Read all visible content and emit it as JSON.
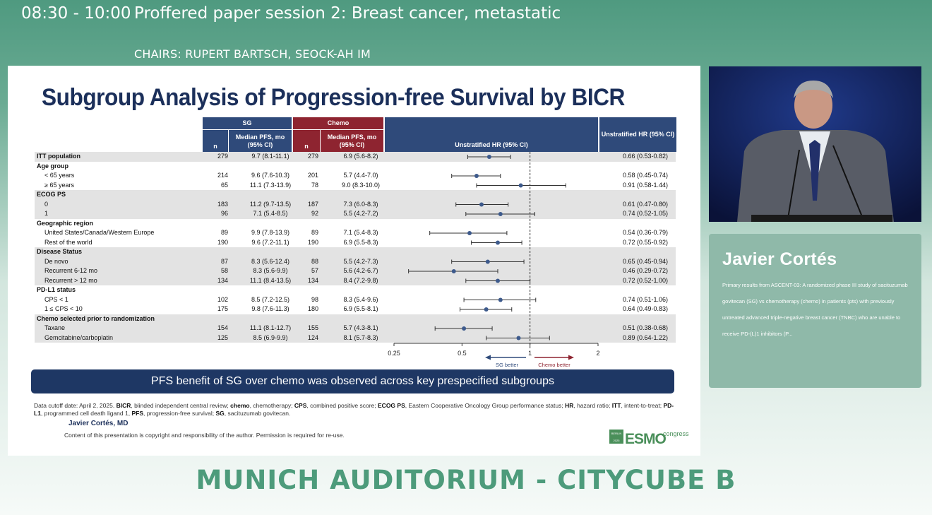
{
  "session": {
    "time": "08:30 - 10:00",
    "title": "Proffered paper session 2: Breast cancer, metastatic",
    "chairs": "CHAIRS: RUPERT BARTSCH, SEOCK-AH IM"
  },
  "slide": {
    "title": "Subgroup Analysis of Progression-free Survival by BICR",
    "headers": {
      "sg": "SG",
      "chemo": "Chemo",
      "n": "n",
      "median_pfs": "Median PFS, mo (95% CI)",
      "hr_plot": "Unstratified HR (95% CI)",
      "hr_col": "Unstratified HR (95% CI)"
    },
    "rows": [
      {
        "label": "ITT population",
        "type": "header",
        "sg_n": "279",
        "sg_pfs": "9.7 (8.1-11.1)",
        "chemo_n": "279",
        "chemo_pfs": "6.9 (5.6-8.2)",
        "hr_text": "0.66 (0.53-0.82)",
        "hr": 0.66,
        "lo": 0.53,
        "hi": 0.82
      },
      {
        "label": "Age group",
        "type": "group"
      },
      {
        "label": "< 65 years",
        "type": "sub",
        "sg_n": "214",
        "sg_pfs": "9.6 (7.6-10.3)",
        "chemo_n": "201",
        "chemo_pfs": "5.7 (4.4-7.0)",
        "hr_text": "0.58 (0.45-0.74)",
        "hr": 0.58,
        "lo": 0.45,
        "hi": 0.74
      },
      {
        "label": "≥ 65 years",
        "type": "sub",
        "sg_n": "65",
        "sg_pfs": "11.1 (7.3-13.9)",
        "chemo_n": "78",
        "chemo_pfs": "9.0 (8.3-10.0)",
        "hr_text": "0.91 (0.58-1.44)",
        "hr": 0.91,
        "lo": 0.58,
        "hi": 1.44
      },
      {
        "label": "ECOG PS",
        "type": "group"
      },
      {
        "label": "0",
        "type": "sub",
        "sg_n": "183",
        "sg_pfs": "11.2 (9.7-13.5)",
        "chemo_n": "187",
        "chemo_pfs": "7.3 (6.0-8.3)",
        "hr_text": "0.61 (0.47-0.80)",
        "hr": 0.61,
        "lo": 0.47,
        "hi": 0.8
      },
      {
        "label": "1",
        "type": "sub",
        "sg_n": "96",
        "sg_pfs": "7.1 (5.4-8.5)",
        "chemo_n": "92",
        "chemo_pfs": "5.5 (4.2-7.2)",
        "hr_text": "0.74 (0.52-1.05)",
        "hr": 0.74,
        "lo": 0.52,
        "hi": 1.05
      },
      {
        "label": "Geographic region",
        "type": "group"
      },
      {
        "label": "United States/Canada/Western Europe",
        "type": "sub",
        "sg_n": "89",
        "sg_pfs": "9.9 (7.8-13.9)",
        "chemo_n": "89",
        "chemo_pfs": "7.1 (5.4-8.3)",
        "hr_text": "0.54 (0.36-0.79)",
        "hr": 0.54,
        "lo": 0.36,
        "hi": 0.79
      },
      {
        "label": "Rest of the world",
        "type": "sub",
        "sg_n": "190",
        "sg_pfs": "9.6 (7.2-11.1)",
        "chemo_n": "190",
        "chemo_pfs": "6.9 (5.5-8.3)",
        "hr_text": "0.72 (0.55-0.92)",
        "hr": 0.72,
        "lo": 0.55,
        "hi": 0.92
      },
      {
        "label": "Disease Status",
        "type": "group"
      },
      {
        "label": "De novo",
        "type": "sub",
        "sg_n": "87",
        "sg_pfs": "8.3 (5.6-12.4)",
        "chemo_n": "88",
        "chemo_pfs": "5.5 (4.2-7.3)",
        "hr_text": "0.65 (0.45-0.94)",
        "hr": 0.65,
        "lo": 0.45,
        "hi": 0.94
      },
      {
        "label": "Recurrent 6-12 mo",
        "type": "sub",
        "sg_n": "58",
        "sg_pfs": "8.3 (5.6-9.9)",
        "chemo_n": "57",
        "chemo_pfs": "5.6 (4.2-6.7)",
        "hr_text": "0.46 (0.29-0.72)",
        "hr": 0.46,
        "lo": 0.29,
        "hi": 0.72
      },
      {
        "label": "Recurrent > 12 mo",
        "type": "sub",
        "sg_n": "134",
        "sg_pfs": "11.1 (8.4-13.5)",
        "chemo_n": "134",
        "chemo_pfs": "8.4 (7.2-9.8)",
        "hr_text": "0.72 (0.52-1.00)",
        "hr": 0.72,
        "lo": 0.52,
        "hi": 1.0
      },
      {
        "label": "PD-L1 status",
        "type": "group"
      },
      {
        "label": "CPS < 1",
        "type": "sub",
        "sg_n": "102",
        "sg_pfs": "8.5 (7.2-12.5)",
        "chemo_n": "98",
        "chemo_pfs": "8.3 (5.4-9.6)",
        "hr_text": "0.74 (0.51-1.06)",
        "hr": 0.74,
        "lo": 0.51,
        "hi": 1.06
      },
      {
        "label": "1 ≤ CPS < 10",
        "type": "sub",
        "sg_n": "175",
        "sg_pfs": "9.8 (7.6-11.3)",
        "chemo_n": "180",
        "chemo_pfs": "6.9 (5.5-8.1)",
        "hr_text": "0.64 (0.49-0.83)",
        "hr": 0.64,
        "lo": 0.49,
        "hi": 0.83
      },
      {
        "label": "Chemo selected prior to randomization",
        "type": "group"
      },
      {
        "label": "Taxane",
        "type": "sub",
        "sg_n": "154",
        "sg_pfs": "11.1 (8.1-12.7)",
        "chemo_n": "155",
        "chemo_pfs": "5.7 (4.3-8.1)",
        "hr_text": "0.51 (0.38-0.68)",
        "hr": 0.51,
        "lo": 0.38,
        "hi": 0.68
      },
      {
        "label": "Gemcitabine/carboplatin",
        "type": "sub",
        "sg_n": "125",
        "sg_pfs": "8.5 (6.9-9.9)",
        "chemo_n": "124",
        "chemo_pfs": "8.1 (5.7-8.3)",
        "hr_text": "0.89 (0.64-1.22)",
        "hr": 0.89,
        "lo": 0.64,
        "hi": 1.22
      }
    ],
    "axis": {
      "ticks": [
        "0.25",
        "0.5",
        "1",
        "2"
      ],
      "tick_values": [
        0.25,
        0.5,
        1,
        2
      ],
      "scale": "log2",
      "reference": 1,
      "left_label": "SG better",
      "right_label": "Chemo better"
    },
    "banner": "PFS benefit of SG over chemo was observed across key prespecified subgroups",
    "footnote": [
      {
        "t": "Data cutoff date: April 2, 2025. ",
        "b": false
      },
      {
        "t": "BICR",
        "b": true
      },
      {
        "t": ", blinded independent central review; ",
        "b": false
      },
      {
        "t": "chemo",
        "b": true
      },
      {
        "t": ", chemotherapy; ",
        "b": false
      },
      {
        "t": "CPS",
        "b": true
      },
      {
        "t": ", combined positive score; ",
        "b": false
      },
      {
        "t": "ECOG PS",
        "b": true
      },
      {
        "t": ", Eastern Cooperative Oncology Group performance status; ",
        "b": false
      },
      {
        "t": "HR",
        "b": true
      },
      {
        "t": ", hazard ratio; ",
        "b": false
      },
      {
        "t": "ITT",
        "b": true
      },
      {
        "t": ", intent-to-treat; ",
        "b": false
      },
      {
        "t": "PD-L1",
        "b": true
      },
      {
        "t": ", programmed cell death ligand 1, ",
        "b": false
      },
      {
        "t": "PFS",
        "b": true
      },
      {
        "t": ", progression-free survival; ",
        "b": false
      },
      {
        "t": "SG",
        "b": true
      },
      {
        "t": ", sacituzumab govitecan.",
        "b": false
      }
    ],
    "presenter": "Javier Cortés, MD",
    "copyright": "Content of this presentation is copyright and responsibility of the author. Permission is required for re-use.",
    "logo": {
      "city": "BERLIN",
      "year": "2025",
      "brand": "ESMO",
      "suffix": "congress",
      "brand_color": "#4a8f5a"
    }
  },
  "speaker_card": {
    "name": "Javier Cortés",
    "description": "Primary results from ASCENT-03: A randomized phase III study of sacituzumab govitecan (SG) vs chemotherapy (chemo) in patients (pts) with previously untreated advanced triple-negative breast cancer (TNBC) who are unable to receive PD-(L)1 inhibitors (P..."
  },
  "room": "MUNICH AUDITORIUM - CITYCUBE B",
  "colors": {
    "navy": "#2f4a7a",
    "dark_red": "#8e2430",
    "banner": "#1e3764",
    "title": "#1b2f5a",
    "green": "#4d9b7b"
  }
}
